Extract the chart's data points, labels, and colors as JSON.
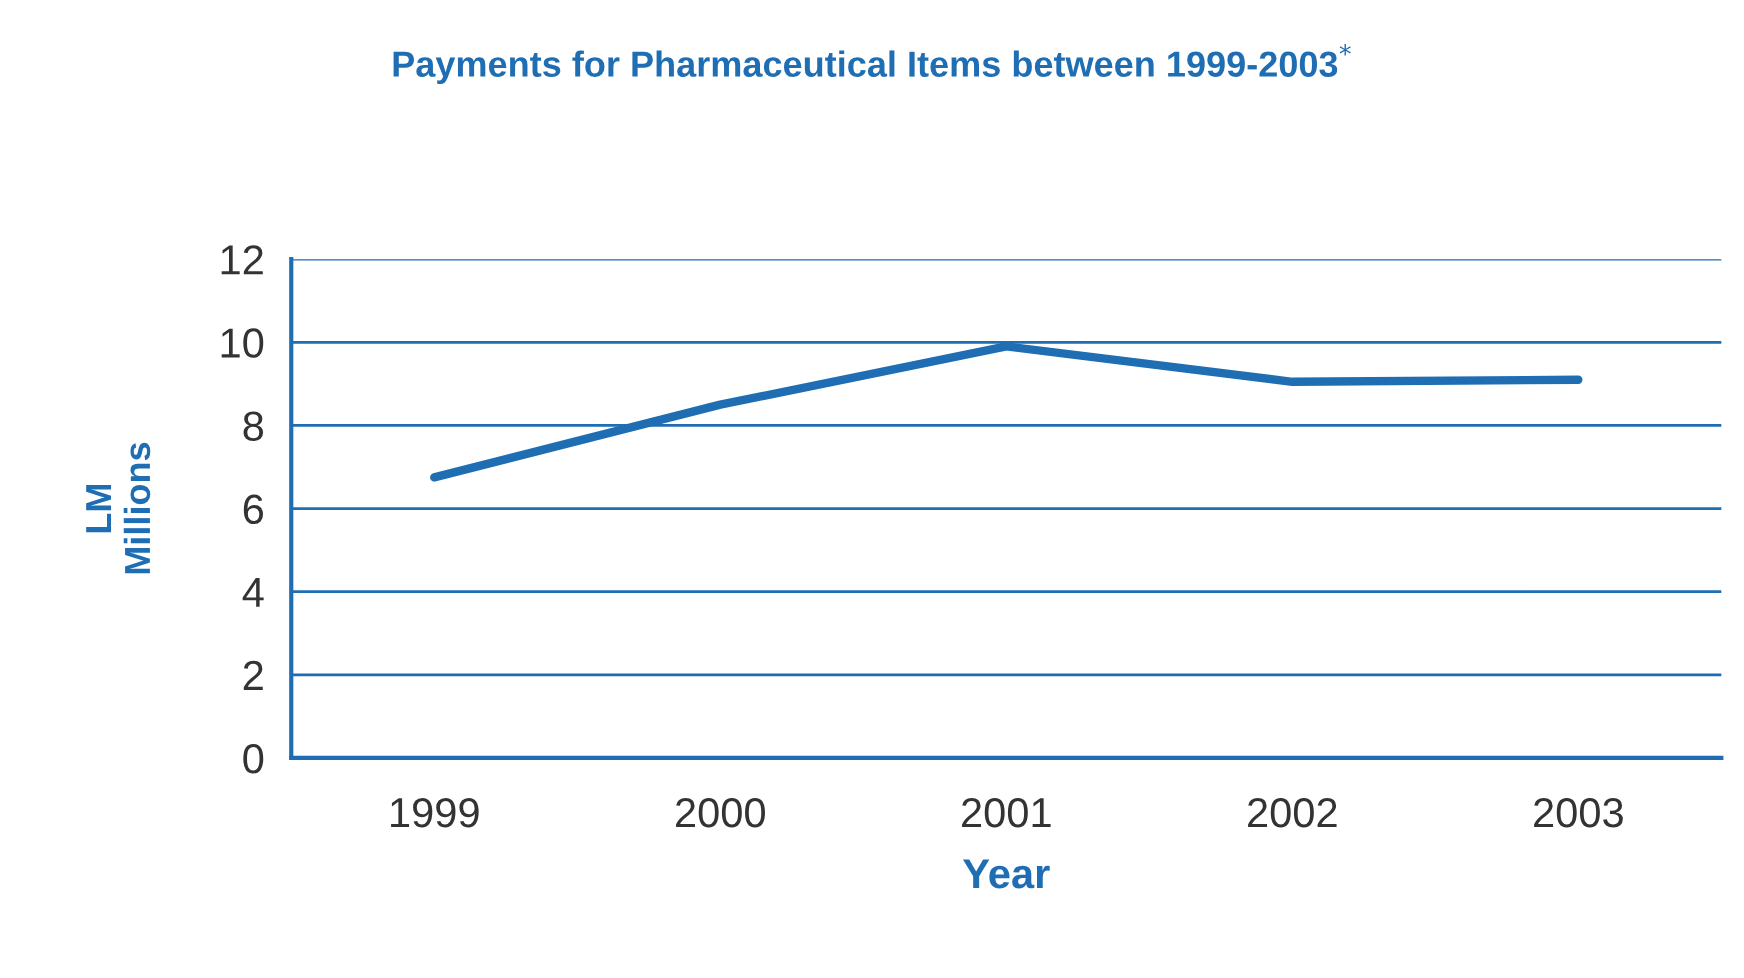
{
  "chart_data": {
    "type": "line",
    "title": "Payments for Pharmaceutical Items between 1999-2003$^{*}$",
    "xlabel": "Year",
    "ylabel": "LM\nMillions",
    "categories": [
      "1999",
      "2000",
      "2001",
      "2002",
      "2003"
    ],
    "series": [
      {
        "color": "#1f6db3",
        "values": [
          6.75,
          8.5,
          9.9,
          9.05,
          9.1
        ]
      }
    ],
    "ylim": [
      0,
      12
    ],
    "yticks": [
      0,
      2,
      4,
      6,
      8,
      10,
      12
    ],
    "grid": "y",
    "legend": false,
    "marker": "none",
    "line_style": "solid"
  }
}
